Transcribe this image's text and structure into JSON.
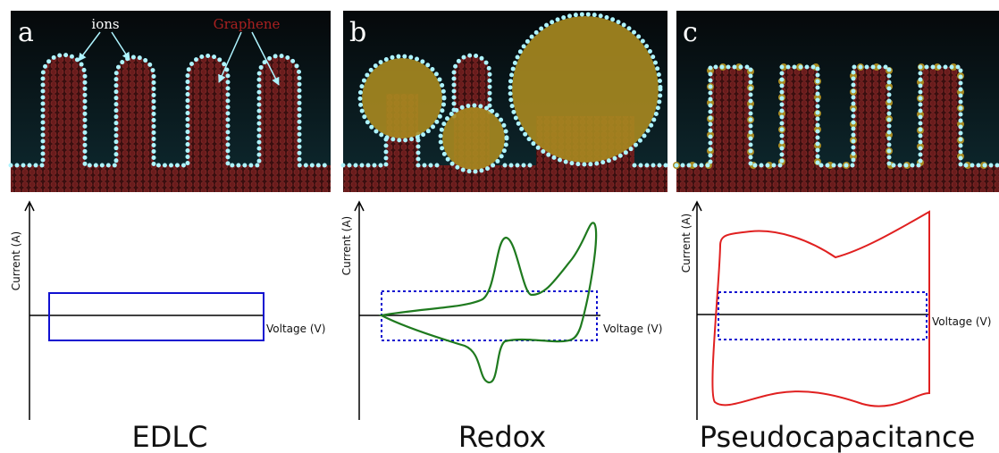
{
  "panels": [
    {
      "letter": "a",
      "annotations": [
        "ions",
        "Graphene"
      ],
      "y_axis_label": "Current (A)",
      "x_axis_label": "Voltage (V)",
      "title": "EDLC"
    },
    {
      "letter": "b",
      "y_axis_label": "Current (A)",
      "x_axis_label": "Voltage (V)",
      "title": "Redox"
    },
    {
      "letter": "c",
      "y_axis_label": "Current (A)",
      "x_axis_label": "Voltage (V)",
      "title": "Pseudocapacitance"
    }
  ]
}
